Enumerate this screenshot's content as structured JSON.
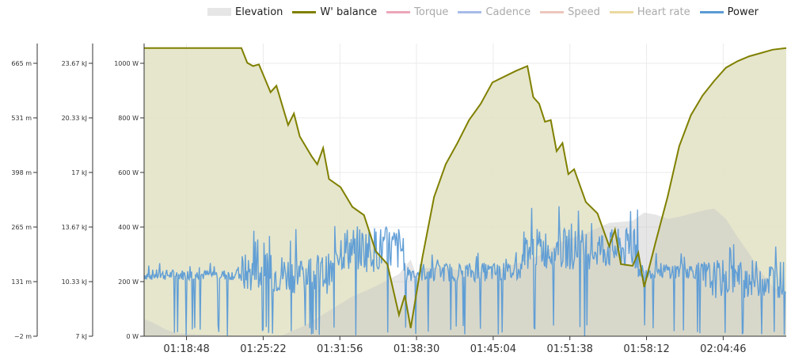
{
  "colors": {
    "elevation": "#c7c7c7",
    "wbal": "#808000",
    "wbal_fill": "#e3e3c8",
    "torque": "#e06b8a",
    "cadence": "#6c8fd8",
    "speed": "#e0a090",
    "heart": "#e0c060",
    "power": "#5b9bd5",
    "grid": "#ebebeb",
    "axis": "#333333"
  },
  "legend": [
    {
      "label": "Elevation",
      "key": "elevation",
      "style": "area",
      "active": true
    },
    {
      "label": "W' balance",
      "key": "wbal",
      "style": "line",
      "active": true
    },
    {
      "label": "Torque",
      "key": "torque",
      "style": "line",
      "active": false
    },
    {
      "label": "Cadence",
      "key": "cadence",
      "style": "line",
      "active": false
    },
    {
      "label": "Speed",
      "key": "speed",
      "style": "line",
      "active": false
    },
    {
      "label": "Heart rate",
      "key": "heart",
      "style": "line",
      "active": false
    },
    {
      "label": "Power",
      "key": "power",
      "style": "line",
      "active": true
    }
  ],
  "chart_data": {
    "type": "line",
    "x_range": [
      "01:15:10",
      "02:10:10"
    ],
    "x_ticks": [
      "01:18:48",
      "01:25:22",
      "01:31:56",
      "01:38:30",
      "01:45:04",
      "01:51:38",
      "01:58:12",
      "02:04:46"
    ],
    "axes": {
      "elevation": {
        "ticks": [
          "−2 m",
          "131 m",
          "265 m",
          "398 m",
          "531 m",
          "665 m"
        ],
        "range": [
          -2,
          665
        ]
      },
      "wbal": {
        "ticks": [
          "7 kJ",
          "10.33 kJ",
          "13.67 kJ",
          "17 kJ",
          "20.33 kJ",
          "23.67 kJ"
        ],
        "range": [
          7,
          23.67
        ]
      },
      "power": {
        "ticks": [
          "0 W",
          "200 W",
          "400 W",
          "600 W",
          "800 W",
          "1000 W"
        ],
        "range": [
          0,
          1000
        ]
      }
    },
    "grid": true,
    "series": [
      {
        "name": "Elevation",
        "key": "elevation",
        "unit": "m",
        "points": [
          [
            "01:15:10",
            40
          ],
          [
            "01:16:00",
            30
          ],
          [
            "01:17:00",
            15
          ],
          [
            "01:18:00",
            5
          ],
          [
            "01:20:00",
            2
          ],
          [
            "01:25:00",
            -2
          ],
          [
            "01:27:00",
            0
          ],
          [
            "01:29:00",
            25
          ],
          [
            "01:31:00",
            60
          ],
          [
            "01:33:00",
            95
          ],
          [
            "01:35:00",
            120
          ],
          [
            "01:37:00",
            150
          ],
          [
            "01:38:00",
            185
          ],
          [
            "01:38:30",
            145
          ],
          [
            "01:39:00",
            165
          ],
          [
            "01:41:00",
            165
          ],
          [
            "01:43:00",
            155
          ],
          [
            "01:45:00",
            155
          ],
          [
            "01:47:00",
            175
          ],
          [
            "01:49:00",
            195
          ],
          [
            "01:51:00",
            230
          ],
          [
            "01:53:00",
            250
          ],
          [
            "01:55:00",
            275
          ],
          [
            "01:57:00",
            280
          ],
          [
            "01:58:00",
            300
          ],
          [
            "01:59:00",
            295
          ],
          [
            "02:00:00",
            285
          ],
          [
            "02:01:00",
            290
          ],
          [
            "02:03:00",
            305
          ],
          [
            "02:04:00",
            310
          ],
          [
            "02:05:00",
            285
          ],
          [
            "02:06:00",
            240
          ],
          [
            "02:07:00",
            200
          ],
          [
            "02:08:00",
            155
          ],
          [
            "02:09:00",
            120
          ],
          [
            "02:10:10",
            100
          ]
        ]
      },
      {
        "name": "W' balance",
        "key": "wbal",
        "unit": "kJ",
        "points": [
          [
            "01:15:10",
            24.6
          ],
          [
            "01:23:30",
            24.6
          ],
          [
            "01:24:00",
            23.7
          ],
          [
            "01:24:30",
            23.5
          ],
          [
            "01:25:00",
            23.6
          ],
          [
            "01:26:00",
            21.9
          ],
          [
            "01:26:30",
            22.3
          ],
          [
            "01:27:30",
            19.9
          ],
          [
            "01:28:00",
            20.6
          ],
          [
            "01:28:30",
            19.2
          ],
          [
            "01:29:30",
            18.0
          ],
          [
            "01:30:00",
            17.5
          ],
          [
            "01:30:30",
            18.5
          ],
          [
            "01:31:00",
            16.6
          ],
          [
            "01:32:00",
            16.1
          ],
          [
            "01:33:00",
            14.9
          ],
          [
            "01:34:00",
            14.4
          ],
          [
            "01:35:00",
            12.2
          ],
          [
            "01:36:00",
            11.4
          ],
          [
            "01:37:00",
            8.3
          ],
          [
            "01:37:30",
            9.5
          ],
          [
            "01:38:00",
            7.5
          ],
          [
            "01:39:00",
            11.8
          ],
          [
            "01:40:00",
            15.5
          ],
          [
            "01:41:00",
            17.5
          ],
          [
            "01:42:00",
            18.8
          ],
          [
            "01:43:00",
            20.2
          ],
          [
            "01:44:00",
            21.2
          ],
          [
            "01:45:00",
            22.5
          ],
          [
            "01:47:00",
            23.2
          ],
          [
            "01:48:00",
            23.5
          ],
          [
            "01:48:30",
            21.6
          ],
          [
            "01:49:00",
            21.2
          ],
          [
            "01:49:30",
            20.1
          ],
          [
            "01:50:00",
            20.2
          ],
          [
            "01:50:30",
            18.3
          ],
          [
            "01:51:00",
            18.8
          ],
          [
            "01:51:30",
            16.9
          ],
          [
            "01:52:00",
            17.2
          ],
          [
            "01:53:00",
            15.2
          ],
          [
            "01:54:00",
            14.5
          ],
          [
            "01:55:00",
            12.5
          ],
          [
            "01:55:30",
            13.5
          ],
          [
            "01:56:00",
            11.4
          ],
          [
            "01:57:00",
            11.3
          ],
          [
            "01:57:30",
            12.1
          ],
          [
            "01:58:00",
            10.0
          ],
          [
            "01:59:00",
            12.8
          ],
          [
            "02:00:00",
            15.5
          ],
          [
            "02:01:00",
            18.6
          ],
          [
            "02:02:00",
            20.5
          ],
          [
            "02:03:00",
            21.7
          ],
          [
            "02:04:00",
            22.6
          ],
          [
            "02:05:00",
            23.4
          ],
          [
            "02:06:00",
            23.8
          ],
          [
            "02:07:00",
            24.1
          ],
          [
            "02:08:00",
            24.3
          ],
          [
            "02:09:00",
            24.5
          ],
          [
            "02:10:10",
            24.6
          ]
        ]
      },
      {
        "name": "Power",
        "key": "power",
        "unit": "W",
        "segments": [
          {
            "from": "01:15:10",
            "to": "01:23:30",
            "base": 225,
            "spread": 40
          },
          {
            "from": "01:23:30",
            "to": "01:31:30",
            "base": 230,
            "spread": 150
          },
          {
            "from": "01:31:30",
            "to": "01:37:30",
            "base": 320,
            "spread": 170
          },
          {
            "from": "01:37:30",
            "to": "01:47:30",
            "base": 235,
            "spread": 70
          },
          {
            "from": "01:47:30",
            "to": "01:57:30",
            "base": 320,
            "spread": 150
          },
          {
            "from": "01:57:30",
            "to": "02:03:00",
            "base": 240,
            "spread": 60
          },
          {
            "from": "02:03:00",
            "to": "02:10:10",
            "base": 210,
            "spread": 140
          }
        ]
      }
    ]
  }
}
